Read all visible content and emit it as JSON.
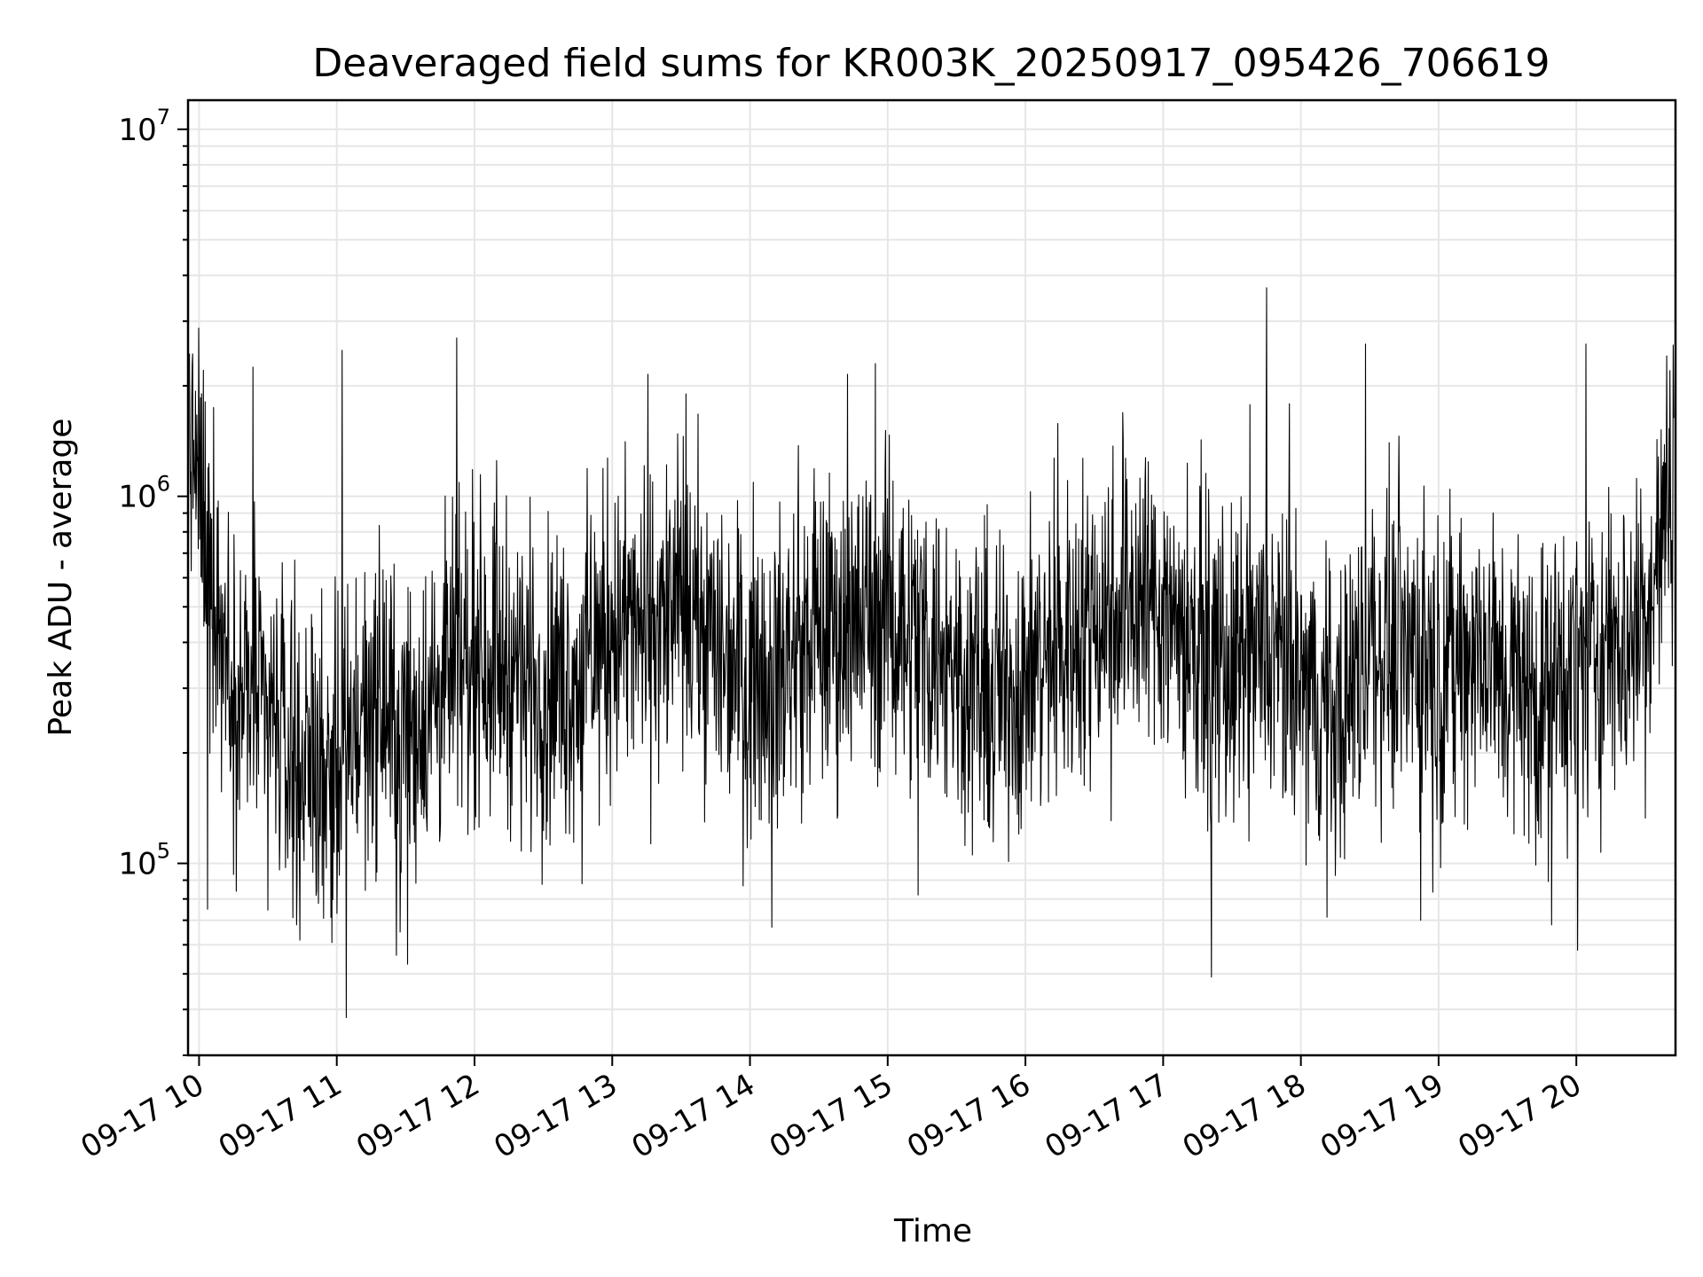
{
  "chart_data": {
    "type": "line",
    "title": "Deaveraged field sums for KR003K_20250917_095426_706619",
    "xlabel": "Time",
    "ylabel": "Peak ADU - average",
    "yscale": "log",
    "ylim": [
      30000,
      12000000
    ],
    "xlim_hours": [
      9.92,
      20.72
    ],
    "x_tick_hours": [
      10,
      11,
      12,
      13,
      14,
      15,
      16,
      17,
      18,
      19,
      20
    ],
    "x_tick_labels": [
      "09-17 10",
      "09-17 11",
      "09-17 12",
      "09-17 13",
      "09-17 14",
      "09-17 15",
      "09-17 16",
      "09-17 17",
      "09-17 18",
      "09-17 19",
      "09-17 20"
    ],
    "y_ticks": [
      {
        "value": 100000,
        "base": "10",
        "exp": "5"
      },
      {
        "value": 1000000,
        "base": "10",
        "exp": "6"
      },
      {
        "value": 10000000,
        "base": "10",
        "exp": "7"
      }
    ],
    "grid": true,
    "line_color": "#000000",
    "series": [
      {
        "x": [
          9.93,
          10.25,
          10.5,
          10.75,
          11.0,
          11.25,
          11.5,
          11.75,
          12.0,
          12.25,
          12.5,
          12.75,
          13.0,
          13.25,
          13.5,
          13.75,
          14.0,
          14.25,
          14.5,
          14.75,
          15.0,
          15.25,
          15.5,
          15.75,
          16.0,
          16.25,
          16.5,
          16.75,
          17.0,
          17.25,
          17.5,
          17.75,
          18.0,
          18.25,
          18.5,
          18.75,
          19.0,
          19.25,
          19.5,
          19.75,
          20.0,
          20.25,
          20.5,
          20.72
        ],
        "y": [
          1500000,
          300000,
          250000,
          200000,
          180000,
          280000,
          220000,
          300000,
          380000,
          350000,
          300000,
          320000,
          450000,
          420000,
          500000,
          400000,
          330000,
          350000,
          420000,
          450000,
          480000,
          420000,
          350000,
          280000,
          320000,
          380000,
          480000,
          550000,
          500000,
          400000,
          320000,
          380000,
          300000,
          250000,
          380000,
          420000,
          330000,
          380000,
          320000,
          280000,
          350000,
          380000,
          450000,
          1200000
        ]
      }
    ],
    "series_extremes": [
      {
        "x": 9.95,
        "y": 2300000
      },
      {
        "x": 10.06,
        "y": 75000
      },
      {
        "x": 10.39,
        "y": 2250000
      },
      {
        "x": 10.71,
        "y": 68000
      },
      {
        "x": 11.04,
        "y": 2500000
      },
      {
        "x": 11.07,
        "y": 38000
      },
      {
        "x": 11.46,
        "y": 65000
      },
      {
        "x": 11.87,
        "y": 2700000
      },
      {
        "x": 12.78,
        "y": 88000
      },
      {
        "x": 13.26,
        "y": 2150000
      },
      {
        "x": 14.16,
        "y": 67000
      },
      {
        "x": 14.71,
        "y": 2150000
      },
      {
        "x": 14.91,
        "y": 2300000
      },
      {
        "x": 15.22,
        "y": 82000
      },
      {
        "x": 17.35,
        "y": 49000
      },
      {
        "x": 17.75,
        "y": 3700000
      },
      {
        "x": 18.47,
        "y": 2600000
      },
      {
        "x": 18.87,
        "y": 70000
      },
      {
        "x": 19.82,
        "y": 68000
      },
      {
        "x": 20.01,
        "y": 58000
      },
      {
        "x": 20.07,
        "y": 2600000
      },
      {
        "x": 20.68,
        "y": 2200000
      }
    ]
  }
}
